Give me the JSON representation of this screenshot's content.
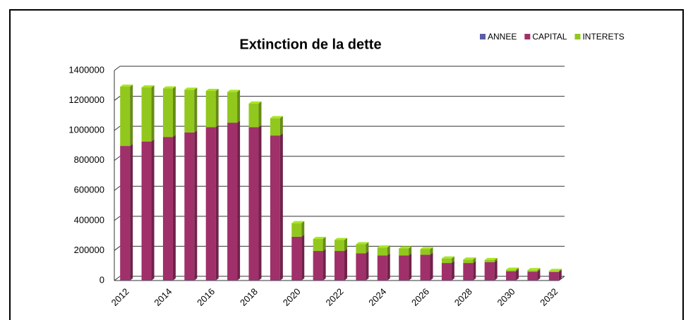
{
  "chart_data": {
    "type": "bar",
    "stacked": true,
    "title": "Extinction de la dette",
    "categories": [
      2012,
      null,
      2014,
      null,
      2016,
      null,
      2018,
      null,
      2020,
      null,
      2022,
      null,
      2024,
      null,
      2026,
      null,
      2028,
      null,
      2030,
      null,
      2032
    ],
    "series": [
      {
        "name": "ANNEE",
        "color": "#5b5ea6",
        "values": [
          2012,
          2013,
          2014,
          2015,
          2016,
          2017,
          2018,
          2019,
          2020,
          2021,
          2022,
          2023,
          2024,
          2025,
          2026,
          2027,
          2028,
          2029,
          2030,
          2031,
          2032
        ]
      },
      {
        "name": "CAPITAL",
        "color": "#a0306a",
        "values": [
          895000,
          925000,
          955000,
          985000,
          1020000,
          1050000,
          1020000,
          965000,
          290000,
          195000,
          195000,
          180000,
          165000,
          165000,
          170000,
          115000,
          115000,
          120000,
          60000,
          57000,
          55000
        ]
      },
      {
        "name": "INTERETS",
        "color": "#92c81e",
        "values": [
          395000,
          360000,
          323000,
          285000,
          242000,
          205000,
          158000,
          115000,
          90000,
          80000,
          73000,
          60000,
          53000,
          47000,
          37000,
          30000,
          23000,
          15000,
          10000,
          10000,
          7000
        ]
      }
    ],
    "ylim": [
      0,
      1400000
    ],
    "yticks": [
      0,
      200000,
      400000,
      600000,
      800000,
      1000000,
      1200000,
      1400000
    ],
    "grid": true,
    "legend": "top-right"
  }
}
